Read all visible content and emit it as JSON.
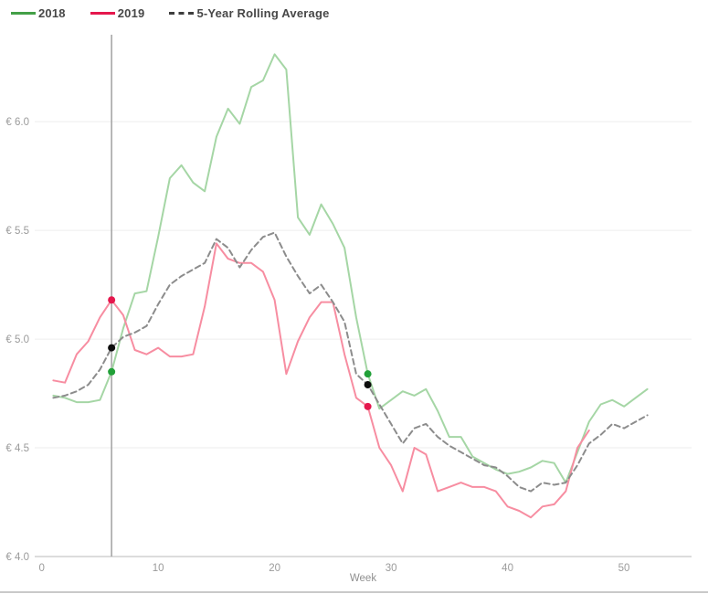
{
  "legend": {
    "items": [
      {
        "label": "2018",
        "color": "#43a047",
        "style": "solid"
      },
      {
        "label": "2019",
        "color": "#e5174d",
        "style": "solid"
      },
      {
        "label": "5-Year Rolling Average",
        "color": "#3d3d3d",
        "style": "dashed"
      }
    ]
  },
  "chart_data": {
    "type": "line",
    "title": "",
    "xlabel": "Week",
    "ylabel": "",
    "currency_prefix": "€",
    "x_ticks": [
      0,
      10,
      20,
      30,
      40,
      50
    ],
    "y_ticks": [
      4.0,
      4.5,
      5.0,
      5.5,
      6.0
    ],
    "y_tick_labels": [
      "€ 4.0",
      "€ 4.5",
      "€ 5.0",
      "€ 5.5",
      "€ 6.0"
    ],
    "xlim": [
      -0.6,
      55.8
    ],
    "ylim": [
      4.0,
      6.4
    ],
    "grid": "horizontal-only",
    "legend_position": "top-left",
    "series": [
      {
        "name": "2018",
        "color": "#a5d6a5",
        "dash": null,
        "x_start": 1,
        "values": [
          4.74,
          4.73,
          4.71,
          4.71,
          4.72,
          4.85,
          5.05,
          5.21,
          5.22,
          5.47,
          5.74,
          5.8,
          5.72,
          5.68,
          5.93,
          6.06,
          5.99,
          6.16,
          6.19,
          6.31,
          6.24,
          5.56,
          5.48,
          5.62,
          5.53,
          5.42,
          5.1,
          4.84,
          4.68,
          4.72,
          4.76,
          4.74,
          4.77,
          4.67,
          4.55,
          4.55,
          4.46,
          4.43,
          4.4,
          4.38,
          4.39,
          4.41,
          4.44,
          4.43,
          4.34,
          4.48,
          4.62,
          4.7,
          4.72,
          4.69,
          4.73,
          4.77
        ]
      },
      {
        "name": "2019",
        "color": "#f78da1",
        "dash": null,
        "x_start": 1,
        "values": [
          4.81,
          4.8,
          4.93,
          4.99,
          5.1,
          5.18,
          5.11,
          4.95,
          4.93,
          4.96,
          4.92,
          4.92,
          4.93,
          5.15,
          5.44,
          5.37,
          5.35,
          5.35,
          5.31,
          5.18,
          4.84,
          4.99,
          5.1,
          5.17,
          5.17,
          4.93,
          4.73,
          4.69,
          4.5,
          4.42,
          4.3,
          4.5,
          4.47,
          4.3,
          4.32,
          4.34,
          4.32,
          4.32,
          4.3,
          4.23,
          4.21,
          4.18,
          4.23,
          4.24,
          4.3,
          4.5,
          4.58
        ]
      },
      {
        "name": "5-Year Rolling Average",
        "color": "#8c8c8c",
        "dash": "6,4",
        "x_start": 1,
        "values": [
          4.73,
          4.74,
          4.76,
          4.79,
          4.86,
          4.96,
          5.01,
          5.03,
          5.06,
          5.16,
          5.25,
          5.29,
          5.32,
          5.35,
          5.46,
          5.42,
          5.33,
          5.41,
          5.47,
          5.49,
          5.38,
          5.29,
          5.21,
          5.25,
          5.17,
          5.08,
          4.84,
          4.79,
          4.7,
          4.61,
          4.52,
          4.59,
          4.61,
          4.55,
          4.51,
          4.48,
          4.45,
          4.42,
          4.41,
          4.37,
          4.32,
          4.3,
          4.34,
          4.33,
          4.34,
          4.42,
          4.52,
          4.56,
          4.61,
          4.59,
          4.62,
          4.65
        ]
      }
    ],
    "marker_line": {
      "week": 6,
      "color": "#a6a6a6"
    },
    "highlights": [
      {
        "series": "2019",
        "week": 6,
        "value": 5.18,
        "color": "#e5174d"
      },
      {
        "series": "5-Year Rolling Average",
        "week": 6,
        "value": 4.96,
        "color": "#0d0d0d"
      },
      {
        "series": "2018",
        "week": 6,
        "value": 4.85,
        "color": "#21a038"
      },
      {
        "series": "2018",
        "week": 28,
        "value": 4.84,
        "color": "#21a038"
      },
      {
        "series": "5-Year Rolling Average",
        "week": 28,
        "value": 4.79,
        "color": "#0d0d0d"
      },
      {
        "series": "2019",
        "week": 28,
        "value": 4.69,
        "color": "#e5174d"
      }
    ]
  }
}
